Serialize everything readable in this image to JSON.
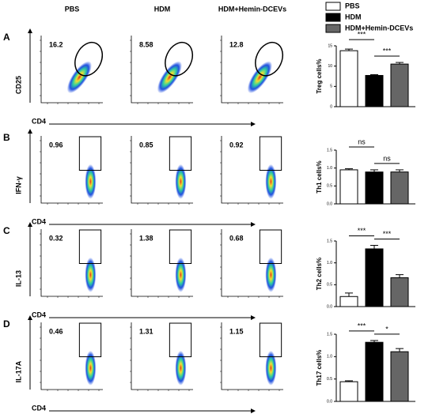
{
  "columns": [
    "PBS",
    "HDM",
    "HDM+Hemin-DCEVs"
  ],
  "legend": [
    {
      "name": "PBS",
      "color": "#ffffff"
    },
    {
      "name": "HDM",
      "color": "#000000"
    },
    {
      "name": "HDM+Hemin-DCEVs",
      "color": "#666666"
    }
  ],
  "flow": [
    {
      "panel": "A",
      "ylabel": "CD25",
      "xlabel": "CD4",
      "gate": "ellipse",
      "percentages": [
        16.2,
        8.58,
        12.8
      ]
    },
    {
      "panel": "B",
      "ylabel": "IFN-γ",
      "xlabel": "CD4",
      "gate": "rect",
      "percentages": [
        0.96,
        0.85,
        0.92
      ]
    },
    {
      "panel": "C",
      "ylabel": "IL-13",
      "xlabel": "CD4",
      "gate": "rect",
      "percentages": [
        0.32,
        1.38,
        0.68
      ]
    },
    {
      "panel": "D",
      "ylabel": "IL-17A",
      "xlabel": "CD4",
      "gate": "rect",
      "percentages": [
        0.46,
        1.31,
        1.15
      ]
    }
  ],
  "chart_data": [
    {
      "type": "bar",
      "ylabel": "Treg cells%",
      "values": [
        13.8,
        7.7,
        10.5
      ],
      "errors": [
        0.4,
        0.2,
        0.4
      ],
      "ylim": [
        0,
        15
      ],
      "yticks": [
        0,
        5,
        10,
        15
      ],
      "significance": [
        "***",
        "***"
      ]
    },
    {
      "type": "bar",
      "ylabel": "Th1 cells%",
      "values": [
        0.95,
        0.89,
        0.89
      ],
      "errors": [
        0.03,
        0.06,
        0.06
      ],
      "ylim": [
        0,
        1.5
      ],
      "yticks": [
        {
          "value": 0,
          "label": "0.0"
        },
        0.5,
        {
          "value": 1,
          "label": "1.0"
        },
        1.5
      ],
      "significance": [
        "ns",
        "ns"
      ]
    },
    {
      "type": "bar",
      "ylabel": "Th2 cells%",
      "values": [
        0.23,
        1.32,
        0.66
      ],
      "errors": [
        0.08,
        0.08,
        0.07
      ],
      "ylim": [
        0,
        1.5
      ],
      "yticks": [
        {
          "value": 0,
          "label": "0.0"
        },
        0.5,
        {
          "value": 1,
          "label": "1.0"
        },
        1.5
      ],
      "significance": [
        "***",
        "***"
      ]
    },
    {
      "type": "bar",
      "ylabel": "Th17 cells%",
      "values": [
        0.44,
        1.32,
        1.11
      ],
      "errors": [
        0.02,
        0.04,
        0.07
      ],
      "ylim": [
        0,
        1.5
      ],
      "yticks": [
        {
          "value": 0,
          "label": "0.0"
        },
        0.5,
        {
          "value": 1,
          "label": "1.0"
        },
        1.5
      ],
      "significance": [
        "***",
        "*"
      ]
    }
  ]
}
